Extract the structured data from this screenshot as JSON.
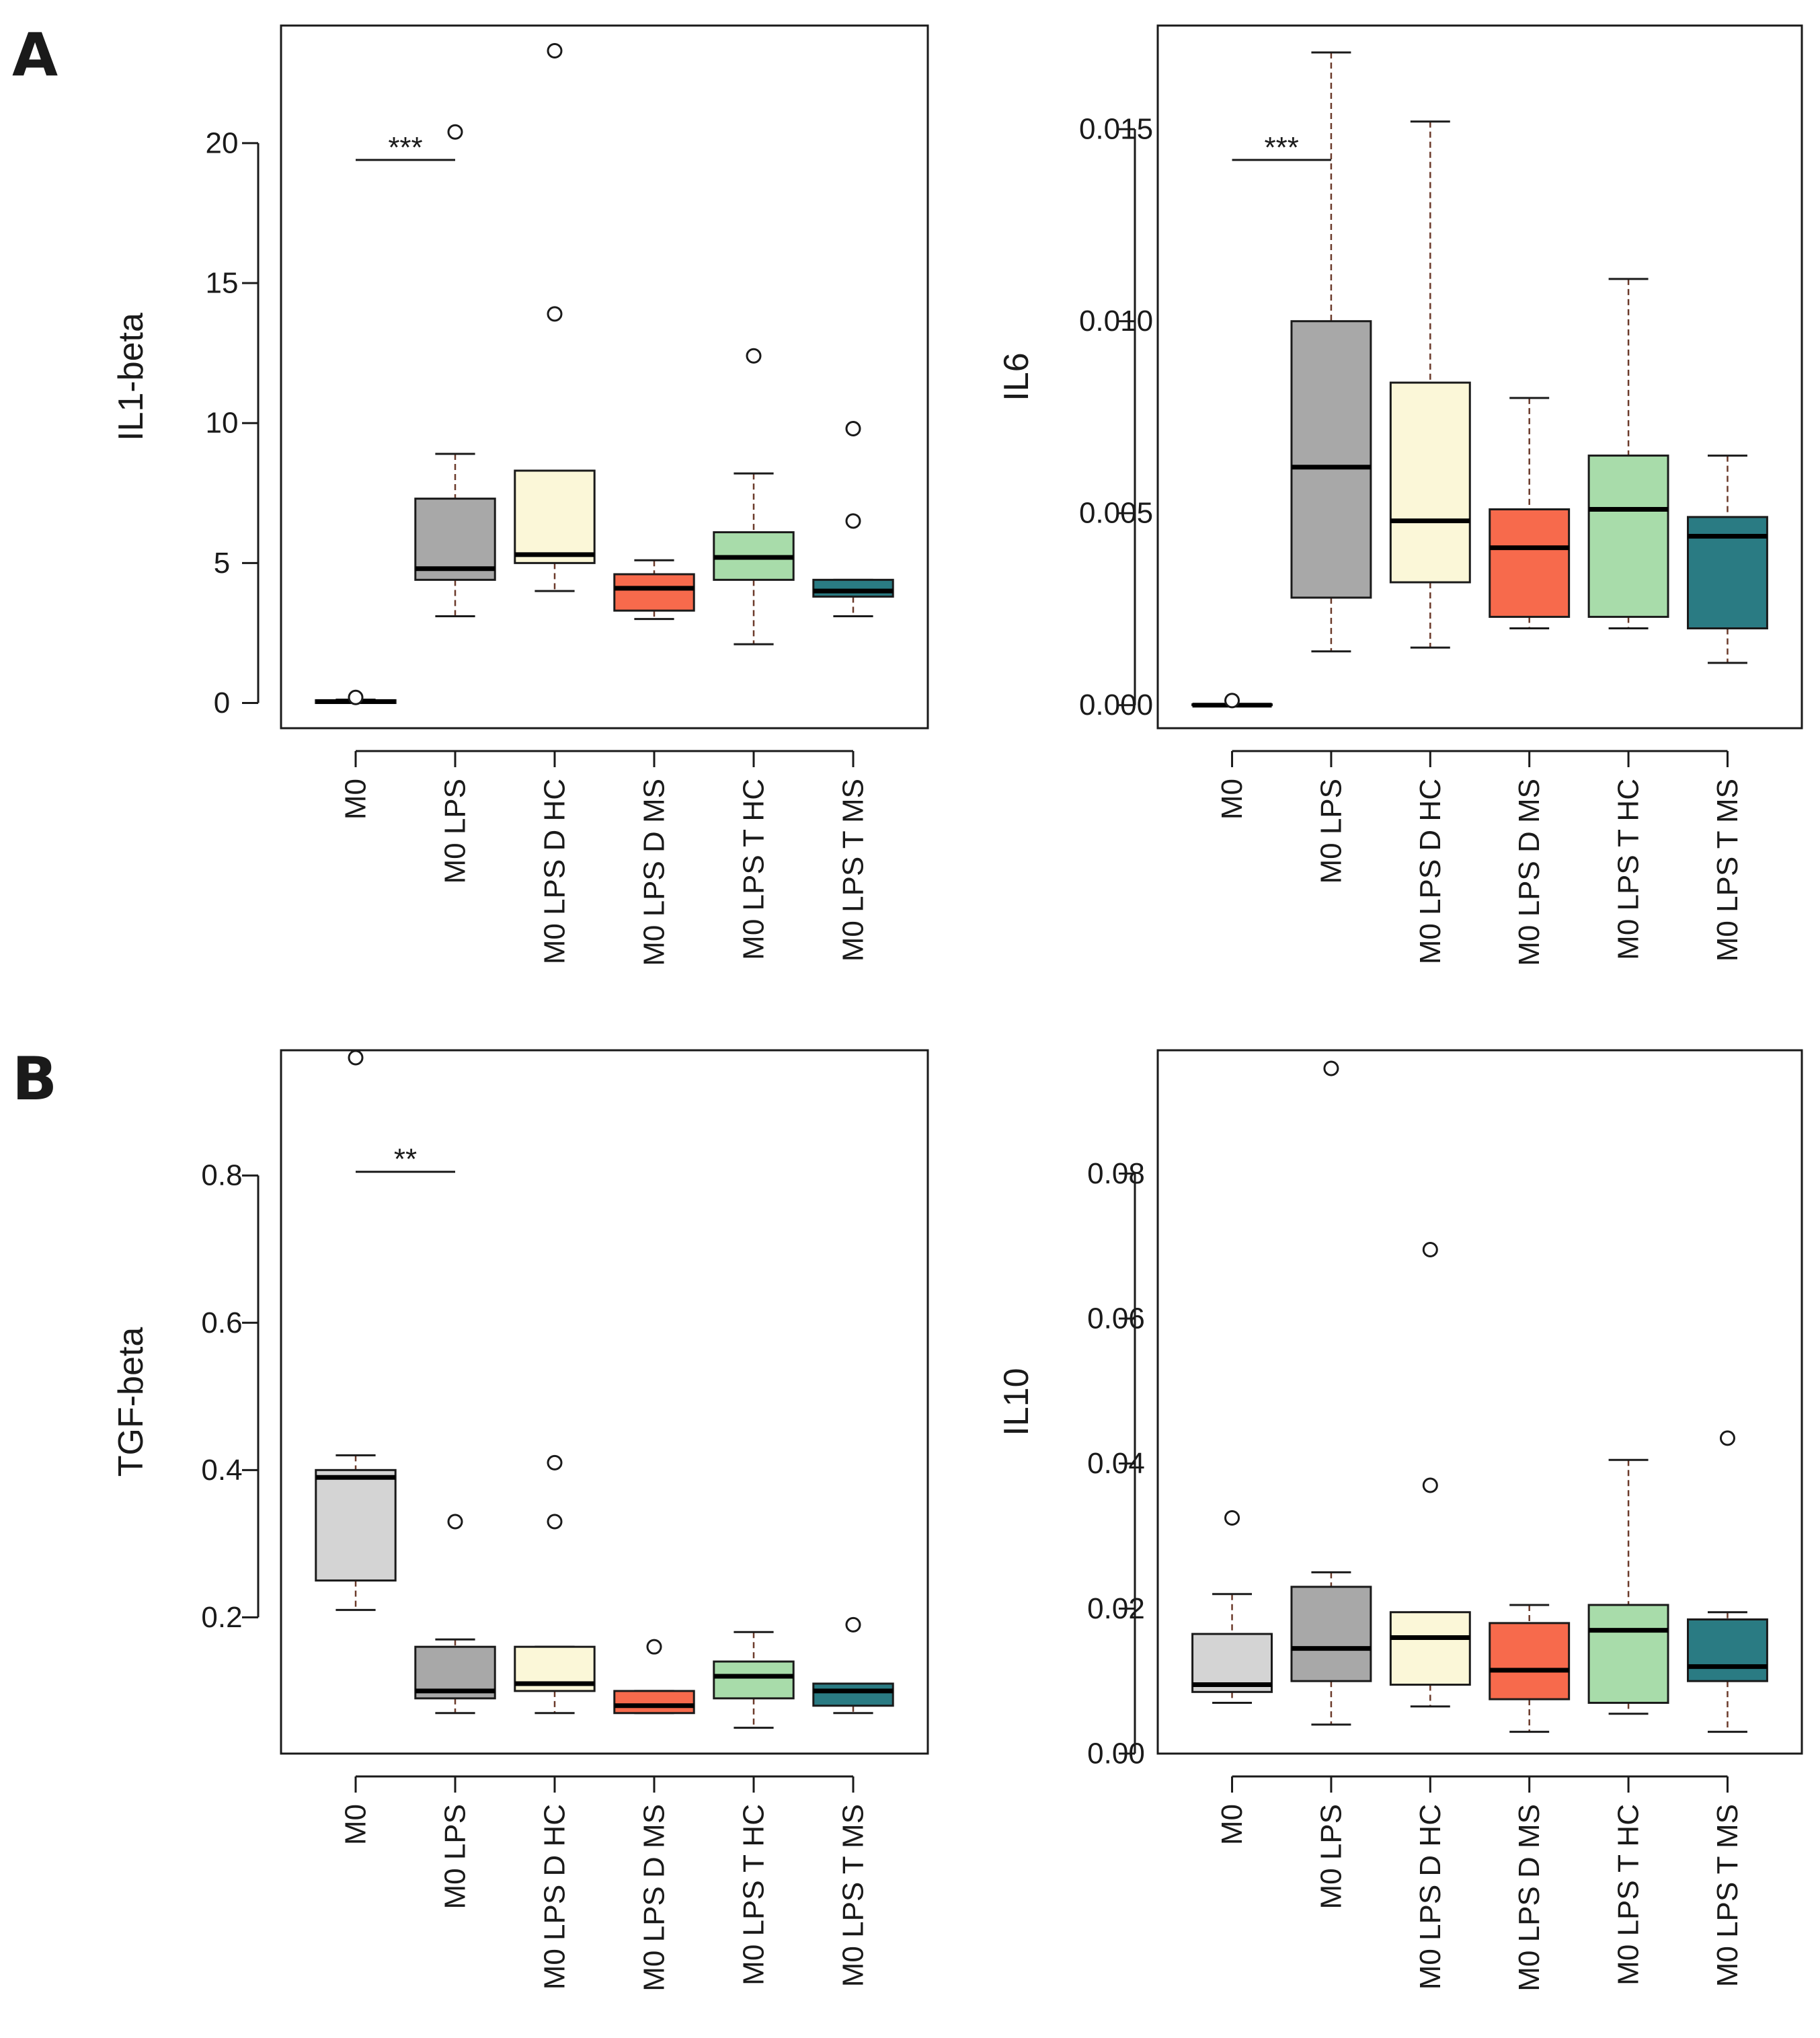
{
  "panel_letters": [
    "A",
    "B"
  ],
  "chart_data": [
    {
      "type": "box",
      "panel": "A",
      "ylabel": "IL1-beta",
      "ylim": [
        -0.9,
        24.2
      ],
      "yticks": [
        "0",
        "5",
        "10",
        "15",
        "20"
      ],
      "categories": [
        "M0",
        "M0 LPS",
        "M0 LPS D HC",
        "M0 LPS D MS",
        "M0 LPS T HC",
        "M0 LPS T MS"
      ],
      "colors": [
        "#d4d4d4",
        "#a8a8a8",
        "#fbf7d8",
        "#f76a4c",
        "#a8dcaa",
        "#2a7b83"
      ],
      "boxes": [
        {
          "min": 0.0,
          "q1": 0.0,
          "median": 0.05,
          "q3": 0.1,
          "max": 0.12
        },
        {
          "min": 3.1,
          "q1": 4.4,
          "median": 4.8,
          "q3": 7.3,
          "max": 8.9
        },
        {
          "min": 4.0,
          "q1": 5.0,
          "median": 5.3,
          "q3": 8.3,
          "max": 8.3
        },
        {
          "min": 3.0,
          "q1": 3.3,
          "median": 4.1,
          "q3": 4.6,
          "max": 5.1
        },
        {
          "min": 2.1,
          "q1": 4.4,
          "median": 5.2,
          "q3": 6.1,
          "max": 8.2
        },
        {
          "min": 3.1,
          "q1": 3.8,
          "median": 4.0,
          "q3": 4.4,
          "max": 4.4
        }
      ],
      "outliers": [
        [
          0.2
        ],
        [
          20.4
        ],
        [
          23.3,
          13.9
        ],
        [],
        [
          12.4
        ],
        [
          9.8,
          6.5
        ]
      ],
      "significance": [
        {
          "from": 0,
          "to": 1,
          "y": 19.4,
          "label": "***"
        }
      ]
    },
    {
      "type": "box",
      "panel": "A",
      "ylabel": "IL6",
      "ylim": [
        -0.0006,
        0.0177
      ],
      "yticks": [
        "0.000",
        "0.005",
        "0.010",
        "0.015"
      ],
      "categories": [
        "M0",
        "M0 LPS",
        "M0 LPS D HC",
        "M0 LPS D MS",
        "M0 LPS T HC",
        "M0 LPS T MS"
      ],
      "colors": [
        "#d4d4d4",
        "#a8a8a8",
        "#fbf7d8",
        "#f76a4c",
        "#a8dcaa",
        "#2a7b83"
      ],
      "boxes": [
        {
          "min": 0.0,
          "q1": 0.0,
          "median": 0.0,
          "q3": 2e-05,
          "max": 3e-05
        },
        {
          "min": 0.0014,
          "q1": 0.0028,
          "median": 0.0062,
          "q3": 0.01,
          "max": 0.017
        },
        {
          "min": 0.0015,
          "q1": 0.0032,
          "median": 0.0048,
          "q3": 0.0084,
          "max": 0.0152
        },
        {
          "min": 0.002,
          "q1": 0.0023,
          "median": 0.0041,
          "q3": 0.0051,
          "max": 0.008
        },
        {
          "min": 0.002,
          "q1": 0.0023,
          "median": 0.0051,
          "q3": 0.0065,
          "max": 0.0111
        },
        {
          "min": 0.0011,
          "q1": 0.002,
          "median": 0.0044,
          "q3": 0.0049,
          "max": 0.0065
        }
      ],
      "outliers": [
        [
          0.00012
        ],
        [],
        [],
        [],
        [],
        []
      ],
      "significance": [
        {
          "from": 0,
          "to": 1,
          "y": 0.0142,
          "label": "***"
        }
      ]
    },
    {
      "type": "box",
      "panel": "B",
      "ylabel": "TGF-beta",
      "ylim": [
        0.015,
        0.97
      ],
      "yticks": [
        "0.2",
        "0.4",
        "0.6",
        "0.8"
      ],
      "categories": [
        "M0",
        "M0 LPS",
        "M0 LPS D HC",
        "M0 LPS D MS",
        "M0 LPS T HC",
        "M0 LPS T MS"
      ],
      "colors": [
        "#d4d4d4",
        "#a8a8a8",
        "#fbf7d8",
        "#f76a4c",
        "#a8dcaa",
        "#2a7b83"
      ],
      "boxes": [
        {
          "min": 0.21,
          "q1": 0.25,
          "median": 0.39,
          "q3": 0.4,
          "max": 0.42
        },
        {
          "min": 0.07,
          "q1": 0.09,
          "median": 0.1,
          "q3": 0.16,
          "max": 0.17
        },
        {
          "min": 0.07,
          "q1": 0.1,
          "median": 0.11,
          "q3": 0.16,
          "max": 0.16
        },
        {
          "min": 0.07,
          "q1": 0.07,
          "median": 0.08,
          "q3": 0.1,
          "max": 0.1
        },
        {
          "min": 0.05,
          "q1": 0.09,
          "median": 0.12,
          "q3": 0.14,
          "max": 0.18
        },
        {
          "min": 0.07,
          "q1": 0.08,
          "median": 0.1,
          "q3": 0.11,
          "max": 0.11
        }
      ],
      "outliers": [
        [
          0.96
        ],
        [
          0.33
        ],
        [
          0.41,
          0.33
        ],
        [
          0.16
        ],
        [],
        [
          0.19
        ]
      ],
      "significance": [
        {
          "from": 0,
          "to": 1,
          "y": 0.805,
          "label": "**"
        }
      ]
    },
    {
      "type": "box",
      "panel": "B",
      "ylabel": "IL10",
      "ylim": [
        0.0,
        0.097
      ],
      "yticks": [
        "0.00",
        "0.02",
        "0.04",
        "0.06",
        "0.08"
      ],
      "categories": [
        "M0",
        "M0 LPS",
        "M0 LPS D HC",
        "M0 LPS D MS",
        "M0 LPS T HC",
        "M0 LPS T MS"
      ],
      "colors": [
        "#d4d4d4",
        "#a8a8a8",
        "#fbf7d8",
        "#f76a4c",
        "#a8dcaa",
        "#2a7b83"
      ],
      "boxes": [
        {
          "min": 0.007,
          "q1": 0.0085,
          "median": 0.0095,
          "q3": 0.0165,
          "max": 0.022
        },
        {
          "min": 0.004,
          "q1": 0.01,
          "median": 0.0145,
          "q3": 0.023,
          "max": 0.025
        },
        {
          "min": 0.0065,
          "q1": 0.0095,
          "median": 0.016,
          "q3": 0.0195,
          "max": 0.0195
        },
        {
          "min": 0.003,
          "q1": 0.0075,
          "median": 0.0115,
          "q3": 0.018,
          "max": 0.0205
        },
        {
          "min": 0.0055,
          "q1": 0.007,
          "median": 0.017,
          "q3": 0.0205,
          "max": 0.0405
        },
        {
          "min": 0.003,
          "q1": 0.01,
          "median": 0.012,
          "q3": 0.0185,
          "max": 0.0195
        }
      ],
      "outliers": [
        [
          0.0325
        ],
        [
          0.0945
        ],
        [
          0.0695,
          0.037
        ],
        [],
        [],
        [
          0.0435
        ]
      ],
      "significance": []
    }
  ]
}
